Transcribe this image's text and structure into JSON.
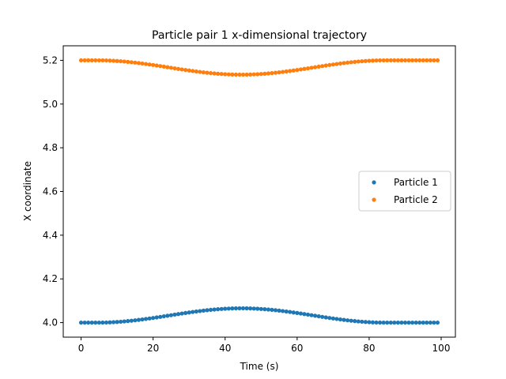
{
  "chart_data": {
    "type": "scatter",
    "title": "Particle pair 1 x-dimensional trajectory",
    "xlabel": "Time (s)",
    "ylabel": "X coordinate",
    "xlim": [
      -4.95,
      103.95
    ],
    "ylim": [
      3.9335,
      5.2665
    ],
    "xticks": [
      0,
      20,
      40,
      60,
      80,
      100
    ],
    "xtick_labels": [
      "0",
      "20",
      "40",
      "60",
      "80",
      "100"
    ],
    "yticks": [
      4.0,
      4.2,
      4.4,
      4.6,
      4.8,
      5.0,
      5.2
    ],
    "ytick_labels": [
      "4.0",
      "4.2",
      "4.4",
      "4.6",
      "4.8",
      "5.0",
      "5.2"
    ],
    "grid": false,
    "legend_position": "center-right",
    "x": {
      "start": 0,
      "stop": 99,
      "step": 1
    },
    "series": [
      {
        "name": "Particle 1",
        "color": "#1f77b4",
        "baseline": 4.0,
        "bump_amplitude": 0.0655,
        "bump_center": 44.5,
        "bump_halfwidth": 40
      },
      {
        "name": "Particle 2",
        "color": "#ff7f0e",
        "baseline": 5.2,
        "bump_amplitude": -0.0655,
        "bump_center": 44.5,
        "bump_halfwidth": 40
      }
    ]
  }
}
